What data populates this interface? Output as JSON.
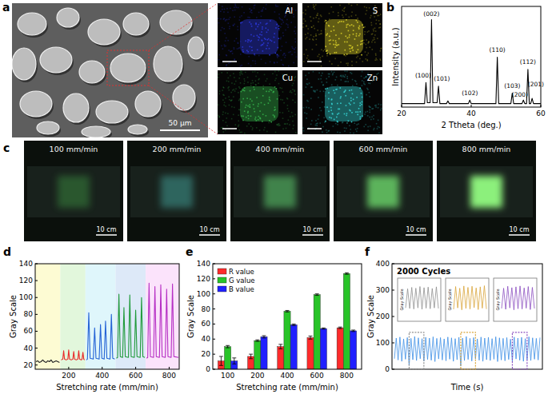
{
  "panel_a": {
    "panel": "a",
    "scale_bar": "50 µm",
    "maps": [
      {
        "element": "Al",
        "color": "#2a36d0"
      },
      {
        "element": "S",
        "color": "#d2c828"
      },
      {
        "element": "Cu",
        "color": "#34a848"
      },
      {
        "element": "Zn",
        "color": "#34cccc"
      }
    ]
  },
  "panel_c": {
    "panel": "c",
    "scale_bar": "10 cm",
    "photos": [
      {
        "label": "100 mm/min"
      },
      {
        "label": "200 mm/min"
      },
      {
        "label": "400 mm/min"
      },
      {
        "label": "600 mm/min"
      },
      {
        "label": "800 mm/min"
      }
    ]
  },
  "chart_data": [
    {
      "panel": "b",
      "type": "line",
      "x_label": "2 Ttheta (deg.)",
      "y_label": "Intensity (a.u.)",
      "xlim": [
        20,
        60
      ],
      "xticks": [
        20,
        40,
        60
      ],
      "ylim": [
        0,
        115
      ],
      "tick_labels": "x",
      "x": [
        20,
        26.6,
        27.0,
        27.4,
        28.2,
        28.6,
        29.0,
        30.2,
        30.6,
        31.0,
        32.9,
        33.3,
        33.7,
        39.2,
        39.6,
        40.0,
        47.1,
        47.5,
        47.9,
        51.4,
        51.8,
        52.2,
        54.6,
        55.0,
        55.4,
        55.9,
        56.3,
        56.7,
        57.1,
        57.5,
        57.9,
        60
      ],
      "series": [
        {
          "color": "#000000",
          "values": [
            4,
            4,
            28,
            5,
            5,
            100,
            5,
            5,
            24,
            4,
            4,
            7,
            4,
            4,
            8,
            4,
            4,
            57,
            4,
            4,
            16,
            4,
            4,
            8,
            4,
            4,
            43,
            4,
            4,
            10,
            4,
            4
          ]
        }
      ],
      "annotations": [
        {
          "text": "(100)",
          "x": 26.2,
          "y": 34
        },
        {
          "text": "(002)",
          "x": 28.6,
          "y": 104
        },
        {
          "text": "(101)",
          "x": 31.6,
          "y": 30
        },
        {
          "text": "(102)",
          "x": 39.6,
          "y": 14
        },
        {
          "text": "(110)",
          "x": 47.5,
          "y": 63
        },
        {
          "text": "(103)",
          "x": 51.8,
          "y": 22
        },
        {
          "text": "(200)",
          "x": 54.0,
          "y": 12
        },
        {
          "text": "(112)",
          "x": 56.3,
          "y": 49
        },
        {
          "text": "(201)",
          "x": 58.6,
          "y": 24
        }
      ]
    },
    {
      "panel": "d",
      "type": "line",
      "x_label": "Stretching rate (mm/min)",
      "y_label": "Gray Scale",
      "xlim": [
        0,
        860
      ],
      "xticks": [
        200,
        400,
        600,
        800
      ],
      "ylim": [
        15,
        140
      ],
      "yticks": [
        20,
        40,
        60,
        80,
        100,
        120,
        140
      ],
      "bands": [
        [
          0,
          150
        ],
        [
          150,
          300
        ],
        [
          300,
          480
        ],
        [
          480,
          660
        ],
        [
          660,
          860
        ]
      ],
      "band_colors": [
        "#fdfbd3",
        "#e2f7dc",
        "#dff6fb",
        "#dde9f8",
        "#fbe3fb"
      ],
      "series": [
        {
          "color": "#222222",
          "x": [
            5,
            15,
            25,
            35,
            45,
            55,
            65,
            75,
            85,
            95,
            105,
            115,
            125,
            135,
            145
          ],
          "values": [
            24,
            25,
            23,
            24,
            26,
            24,
            23,
            25,
            24,
            26,
            23,
            24,
            25,
            24,
            23
          ]
        },
        {
          "color": "#e82a2a",
          "x": [
            155,
            165,
            170,
            175,
            185,
            195,
            200,
            205,
            215,
            225,
            230,
            235,
            245,
            255,
            260,
            265,
            275,
            280,
            285,
            290,
            295
          ],
          "values": [
            26,
            27,
            37,
            27,
            26,
            27,
            38,
            27,
            26,
            27,
            36,
            27,
            26,
            27,
            37,
            27,
            26,
            27,
            35,
            27,
            26
          ]
        },
        {
          "color": "#2463d6",
          "x": [
            305,
            312,
            320,
            328,
            347,
            355,
            363,
            382,
            390,
            398,
            412,
            420,
            428,
            447,
            455,
            463,
            475
          ],
          "values": [
            26,
            27,
            82,
            28,
            27,
            64,
            28,
            27,
            68,
            28,
            27,
            72,
            28,
            27,
            80,
            28,
            27
          ]
        },
        {
          "color": "#1f9a3a",
          "x": [
            485,
            492,
            500,
            508,
            522,
            530,
            538,
            557,
            565,
            573,
            592,
            600,
            608,
            627,
            635,
            643,
            655
          ],
          "values": [
            28,
            29,
            104,
            30,
            29,
            88,
            30,
            29,
            103,
            30,
            29,
            85,
            30,
            29,
            100,
            30,
            29
          ]
        },
        {
          "color": "#b62fc4",
          "x": [
            665,
            672,
            680,
            688,
            707,
            715,
            723,
            742,
            750,
            758,
            777,
            785,
            793,
            812,
            820,
            828,
            855
          ],
          "values": [
            28,
            29,
            117,
            30,
            29,
            113,
            30,
            29,
            115,
            30,
            29,
            110,
            30,
            29,
            116,
            30,
            29
          ]
        }
      ]
    },
    {
      "panel": "e",
      "type": "bar",
      "x_label": "Stretching rate (mm/min)",
      "y_label": "Gray Scale",
      "categories": [
        "100",
        "200",
        "400",
        "600",
        "800"
      ],
      "ylim": [
        0,
        140
      ],
      "yticks": [
        0,
        20,
        40,
        60,
        80,
        100,
        120,
        140
      ],
      "legend": "top-left",
      "series": [
        {
          "name": "R value",
          "color": "#ff2b2b",
          "values": [
            11,
            17,
            30,
            42,
            55
          ],
          "errors": [
            6,
            3,
            3,
            2,
            1
          ]
        },
        {
          "name": "G value",
          "color": "#28c428",
          "values": [
            30,
            38,
            77,
            99,
            127
          ],
          "errors": [
            1.5,
            1,
            1,
            1,
            1
          ]
        },
        {
          "name": "B value",
          "color": "#2020ff",
          "values": [
            11,
            43,
            59,
            54,
            51
          ],
          "errors": [
            4,
            1.5,
            1,
            0.8,
            1
          ]
        }
      ]
    },
    {
      "panel": "f",
      "type": "line",
      "title": "2000 Cycles",
      "x_label": "Time (s)",
      "y_label": "Gray Scale",
      "ylim": [
        0,
        400
      ],
      "yticks": [
        0,
        100,
        200,
        300,
        400
      ],
      "tick_labels": "y",
      "series": [
        {
          "color": "#3d8fe6",
          "values": [
            40,
            118,
            35,
            122,
            30,
            115,
            38,
            120,
            14,
            117,
            36,
            124,
            33,
            119,
            40,
            116,
            31,
            121,
            37,
            118,
            34,
            123,
            29,
            117,
            39,
            120,
            35,
            115,
            32,
            122,
            38,
            119,
            30,
            116,
            36,
            121,
            12,
            118,
            33,
            124,
            37,
            117,
            31,
            120,
            39,
            115,
            34,
            122,
            30,
            118,
            36,
            121,
            33,
            116,
            38,
            123,
            29,
            119,
            35,
            117,
            32,
            120,
            37,
            114,
            31,
            122,
            39,
            118,
            34,
            121,
            30,
            116,
            36,
            123,
            33,
            119,
            38,
            117,
            35,
            120
          ]
        }
      ],
      "insets": [
        {
          "y_label": "Gray Scale",
          "color": "#8f8f8f",
          "zoom": [
            8,
            16
          ],
          "ylim": [
            0,
            140
          ],
          "values": [
            40,
            110,
            38,
            115,
            36,
            112,
            40,
            118,
            35,
            114,
            39,
            116,
            37,
            111,
            40,
            117,
            38
          ]
        },
        {
          "y_label": "Gray Scale",
          "color": "#d9a53a",
          "zoom": [
            36,
            44
          ],
          "ylim": [
            0,
            140
          ],
          "values": [
            35,
            118,
            40,
            112,
            33,
            120,
            38,
            115,
            36,
            119,
            41,
            113,
            34,
            117,
            39,
            121,
            36
          ]
        },
        {
          "y_label": "Gray Scale",
          "color": "#8b4fc0",
          "zoom": [
            64,
            72
          ],
          "ylim": [
            0,
            140
          ],
          "values": [
            38,
            112,
            35,
            119,
            40,
            114,
            33,
            117,
            37,
            120,
            36,
            113,
            39,
            118,
            34,
            115,
            38
          ]
        }
      ]
    }
  ]
}
